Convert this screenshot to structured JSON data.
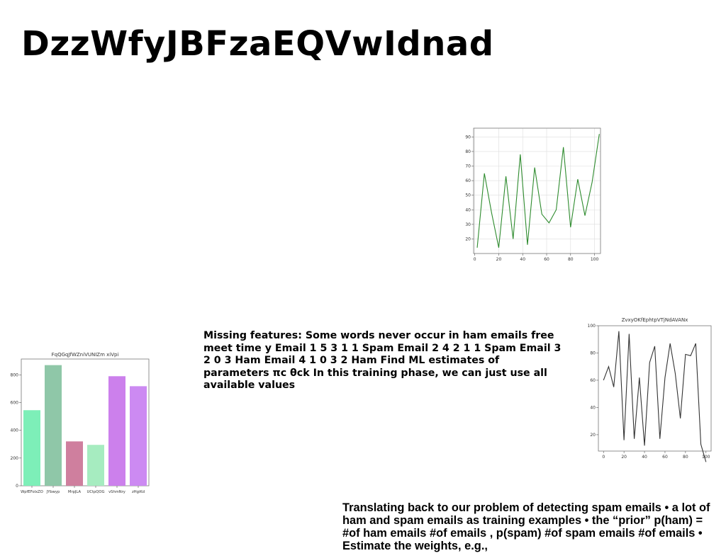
{
  "slide": {
    "title": "DzzWfyJBFzaEQVwIdnad",
    "paragraph_1": "Missing features: Some words never occur in ham emails free meet time y Email 1 5 3 1 1 Spam Email 2 4 2 1 1 Spam Email 3 2 0 3 Ham Email 4 1 0 3 2 Ham Find ML estimates of parameters πc θck In this training phase, we can just use all available values",
    "paragraph_2": "Translating back to our problem of detecting spam emails • a lot of ham and spam emails as training examples • the “prior” p(ham) = #of ham emails #of emails , p(spam) #of spam emails #of emails • Estimate the weights, e.g.,"
  },
  "chart_data": [
    {
      "type": "line",
      "title": "",
      "color": "#2e8b2e",
      "x": [
        2,
        8,
        14,
        20,
        26,
        32,
        38,
        44,
        50,
        56,
        62,
        68,
        74,
        80,
        86,
        92,
        98,
        104
      ],
      "values": [
        14,
        65,
        38,
        14,
        63,
        20,
        78,
        16,
        69,
        37,
        31,
        40,
        83,
        28,
        61,
        36,
        59,
        92
      ],
      "xticks": [
        0,
        20,
        40,
        60,
        80,
        100
      ],
      "yticks": [
        20,
        30,
        40,
        50,
        60,
        70,
        80,
        90
      ],
      "xlim": [
        -1,
        105
      ],
      "ylim": [
        10,
        96
      ],
      "grid": true
    },
    {
      "type": "line",
      "title": "ZvxyOKfEphtpVTjNdAVANx",
      "color": "#333333",
      "x": [
        0,
        5,
        10,
        15,
        20,
        25,
        30,
        35,
        40,
        45,
        50,
        55,
        60,
        65,
        70,
        75,
        80,
        85,
        90,
        95,
        100
      ],
      "values": [
        60,
        70,
        55,
        96,
        16,
        94,
        17,
        62,
        12,
        73,
        85,
        17,
        62,
        87,
        65,
        32,
        79,
        78,
        87,
        13,
        0
      ],
      "xticks": [
        0,
        20,
        40,
        60,
        80,
        100
      ],
      "yticks": [
        20,
        40,
        60,
        80,
        100
      ],
      "xlim": [
        -5,
        105
      ],
      "ylim": [
        8,
        100
      ],
      "grid": false
    },
    {
      "type": "bar",
      "title": "FqQGqJfWZniVUNIZm xiVpi",
      "categories": [
        "WpfEFolxZO",
        "JYbwyp",
        "MrpJLA",
        "UCtpQOG",
        "vShmNry",
        "zHgiKd"
      ],
      "values": [
        545,
        870,
        320,
        295,
        790,
        718
      ],
      "colors": [
        "#7defb8",
        "#8fc7a8",
        "#cf7f9e",
        "#a6ecc0",
        "#cc80ec",
        "#cc8af2"
      ],
      "yticks": [
        0,
        200,
        400,
        600,
        800
      ],
      "ylim": [
        0,
        914
      ]
    }
  ]
}
